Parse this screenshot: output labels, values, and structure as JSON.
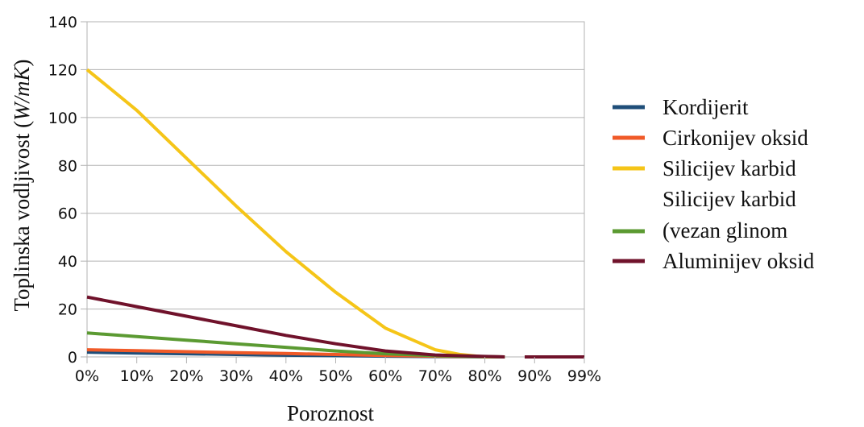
{
  "chart_data": {
    "type": "line",
    "title": "",
    "xlabel": "Poroznost",
    "ylabel": {
      "before": "Toplinska vodljivost (",
      "italic": "W/mK",
      "after": ")"
    },
    "x_categories": [
      "0%",
      "10%",
      "20%",
      "30%",
      "40%",
      "50%",
      "60%",
      "70%",
      "80%",
      "90%",
      "99%"
    ],
    "ylim": [
      0,
      140
    ],
    "yticks": [
      0,
      20,
      40,
      60,
      80,
      100,
      120,
      140
    ],
    "grid": true,
    "legend_position": "right",
    "series": [
      {
        "name": "Kordijerit",
        "color": "#1f4e79",
        "x": [
          0,
          10,
          20,
          30,
          40,
          50,
          60,
          70,
          80,
          84
        ],
        "values": [
          2.0,
          1.6,
          1.3,
          1.0,
          0.7,
          0.5,
          0.3,
          0.15,
          0.05,
          0.0
        ]
      },
      {
        "name": "Cirkonijev oksid",
        "color": "#f05a28",
        "x": [
          0,
          10,
          20,
          30,
          40,
          50,
          60,
          70,
          80,
          84
        ],
        "values": [
          3.0,
          2.6,
          2.2,
          1.8,
          1.4,
          1.0,
          0.6,
          0.3,
          0.1,
          0.0
        ]
      },
      {
        "name": "Silicijev karbid",
        "color": "#f5c518",
        "x": [
          0,
          10,
          20,
          30,
          40,
          50,
          60,
          70,
          75,
          80,
          84
        ],
        "values": [
          120,
          103,
          83,
          63,
          44,
          27,
          12,
          3,
          1,
          0,
          0
        ]
      },
      {
        "name": "Silicijev karbid\n(vezan glinom",
        "color": "#5b9a32",
        "x": [
          0,
          10,
          20,
          30,
          40,
          50,
          60,
          70,
          80,
          84
        ],
        "values": [
          10,
          8.5,
          7.0,
          5.5,
          4.0,
          2.5,
          1.3,
          0.5,
          0.1,
          0.0
        ]
      },
      {
        "name": "Aluminijev oksid",
        "color": "#70122b",
        "x": [
          0,
          10,
          20,
          30,
          40,
          50,
          60,
          70,
          80,
          84,
          90,
          100
        ],
        "values": [
          25,
          21,
          17,
          13,
          9,
          5.5,
          2.5,
          0.8,
          0.2,
          0.0,
          0.0,
          0.0
        ],
        "gap_after_x": 84
      }
    ]
  }
}
